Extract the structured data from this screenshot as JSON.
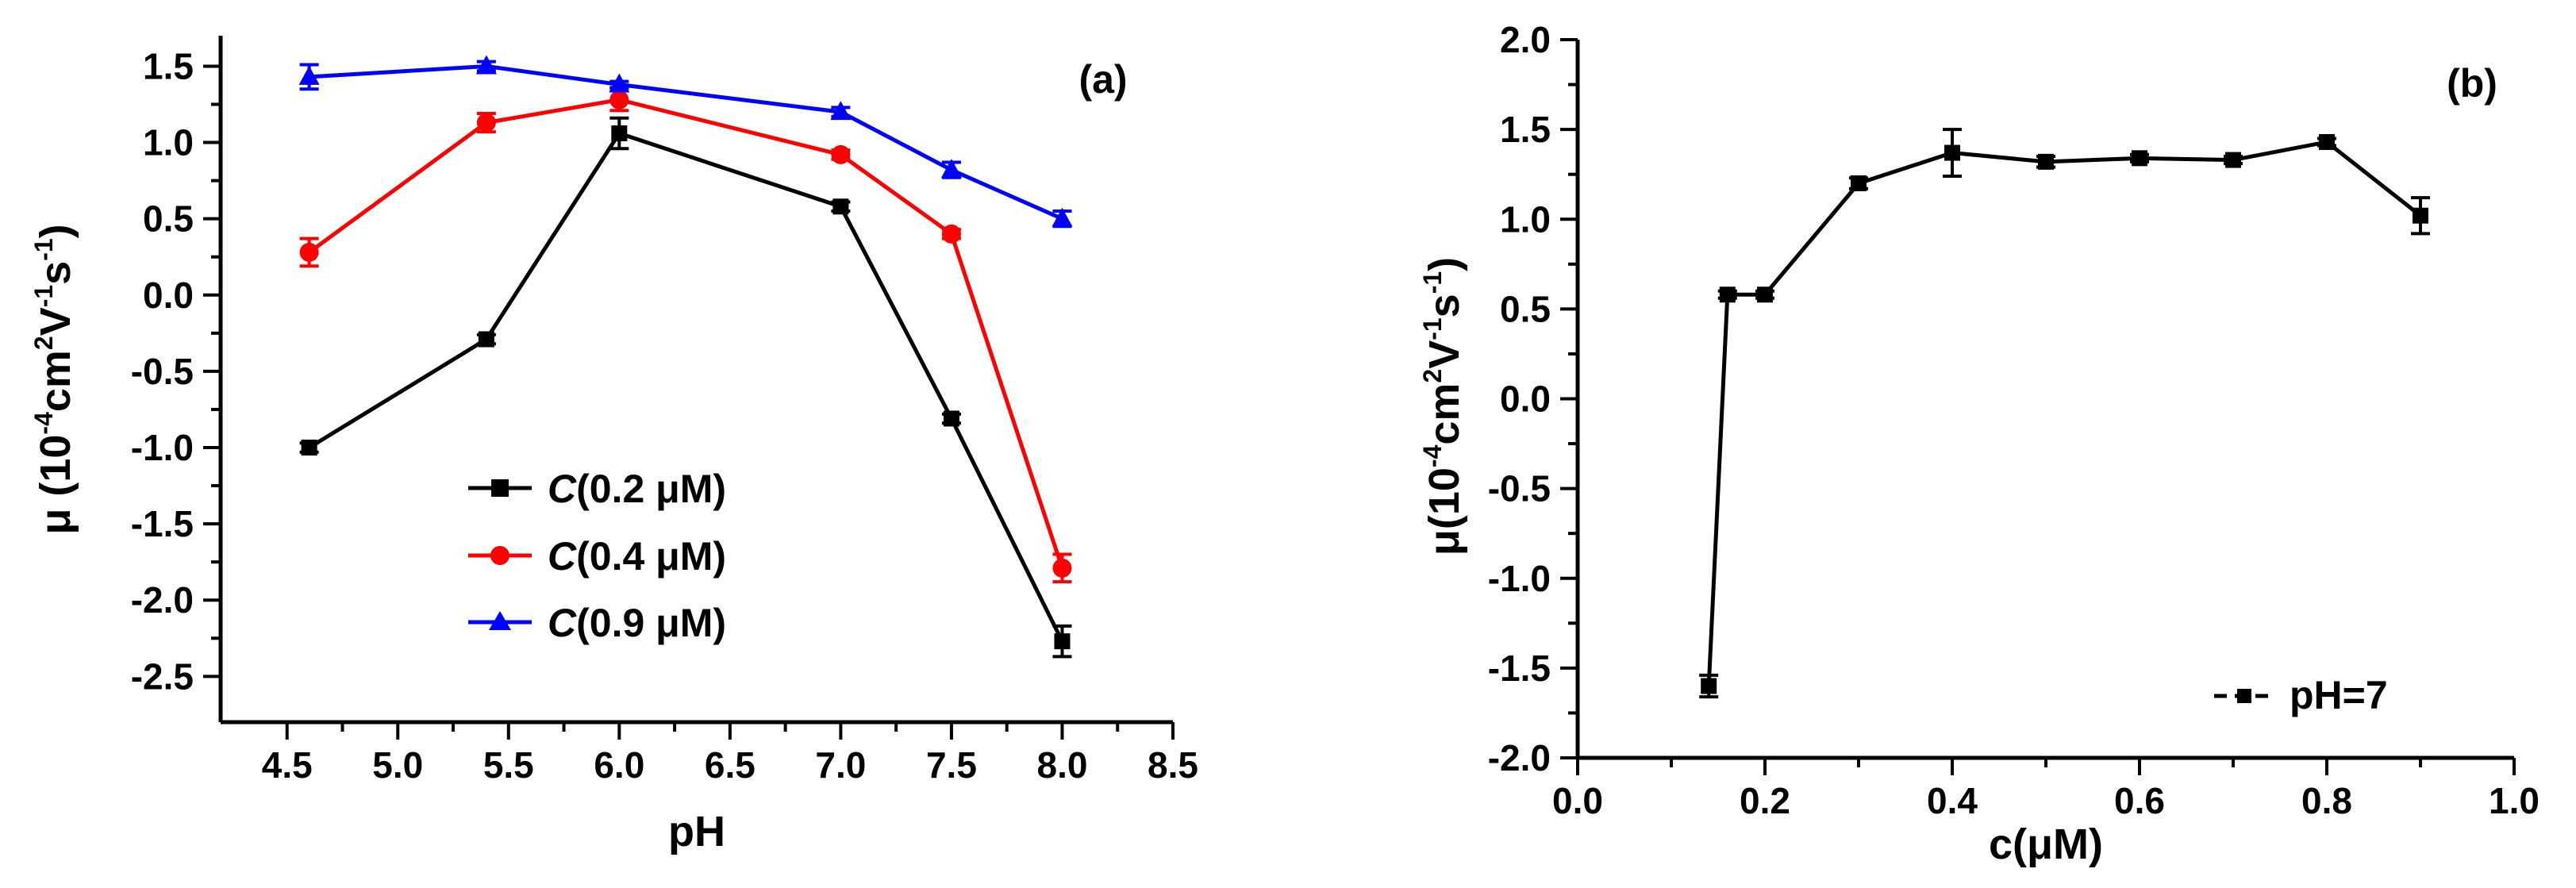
{
  "chart_data": [
    {
      "type": "line",
      "panel_label": "(a)",
      "xlabel": "pH",
      "ylabel": {
        "prefix": "μ (10",
        "exp1": "-4",
        "mid1": "cm",
        "exp2": "2",
        "mid2": "V",
        "exp3": "-1",
        "mid3": "s",
        "exp4": "-1",
        "suffix": ")"
      },
      "xlim": [
        4.2,
        8.5
      ],
      "ylim": [
        -2.8,
        1.7
      ],
      "xticks": [
        4.5,
        5.0,
        5.5,
        6.0,
        6.5,
        7.0,
        7.5,
        8.0,
        8.5
      ],
      "xtick_labels": [
        "4.5",
        "5.0",
        "5.5",
        "6.0",
        "6.5",
        "7.0",
        "7.5",
        "8.0",
        "8.5"
      ],
      "yticks": [
        1.5,
        1.0,
        0.5,
        0.0,
        -0.5,
        -1.0,
        -1.5,
        -2.0,
        -2.5
      ],
      "ytick_labels": [
        "1.5",
        "1.0",
        "0.5",
        "0.0",
        "-0.5",
        "-1.0",
        "-1.5",
        "-2.0",
        "-2.5"
      ],
      "series": [
        {
          "name": "C(0.2 μM)",
          "legend_italic": "C",
          "legend_rest": "(0.2 μM)",
          "color": "#000000",
          "marker": "square",
          "x": [
            4.6,
            5.4,
            6.0,
            7.0,
            7.5,
            8.0
          ],
          "values": [
            -1.0,
            -0.29,
            1.06,
            0.58,
            -0.81,
            -2.27
          ],
          "errors": [
            0.03,
            0.03,
            0.1,
            0.03,
            0.03,
            0.1
          ]
        },
        {
          "name": "C(0.4 μM)",
          "legend_italic": "C",
          "legend_rest": "(0.4 μM)",
          "color": "#ff0000",
          "marker": "circle",
          "x": [
            4.6,
            5.4,
            6.0,
            7.0,
            7.5,
            8.0
          ],
          "values": [
            0.28,
            1.13,
            1.28,
            0.92,
            0.4,
            -1.79
          ],
          "errors": [
            0.09,
            0.06,
            0.07,
            0.03,
            0.03,
            0.09
          ]
        },
        {
          "name": "C(0.9 μM)",
          "legend_italic": "C",
          "legend_rest": "(0.9 μM)",
          "color": "#0000ff",
          "marker": "triangle",
          "x": [
            4.6,
            5.4,
            6.0,
            7.0,
            7.5,
            8.0
          ],
          "values": [
            1.43,
            1.5,
            1.38,
            1.2,
            0.82,
            0.5
          ],
          "errors": [
            0.08,
            0.03,
            0.02,
            0.03,
            0.05,
            0.05
          ]
        }
      ]
    },
    {
      "type": "line",
      "panel_label": "(b)",
      "xlabel": "c(μM)",
      "ylabel": {
        "prefix": "μ(10",
        "exp1": "-4",
        "mid1": "cm",
        "exp2": "2",
        "mid2": "V",
        "exp3": "-1",
        "mid3": "s",
        "exp4": "-1",
        "suffix": ")"
      },
      "xlim": [
        0.0,
        1.0
      ],
      "ylim": [
        -2.0,
        2.0
      ],
      "xticks": [
        0.0,
        0.2,
        0.4,
        0.6,
        0.8,
        1.0
      ],
      "xtick_labels": [
        "0.0",
        "0.2",
        "0.4",
        "0.6",
        "0.8",
        "1.0"
      ],
      "yticks": [
        2.0,
        1.5,
        1.0,
        0.5,
        0.0,
        -0.5,
        -1.0,
        -1.5,
        -2.0
      ],
      "ytick_labels": [
        "2.0",
        "1.5",
        "1.0",
        "0.5",
        "0.0",
        "-0.5",
        "-1.0",
        "-1.5",
        "-2.0"
      ],
      "series": [
        {
          "name": "pH=7",
          "color": "#000000",
          "marker": "square",
          "x": [
            0.14,
            0.16,
            0.2,
            0.3,
            0.4,
            0.5,
            0.6,
            0.7,
            0.8,
            0.9
          ],
          "values": [
            -1.6,
            0.58,
            0.58,
            1.2,
            1.37,
            1.32,
            1.34,
            1.33,
            1.43,
            1.02
          ],
          "errors": [
            0.06,
            0.02,
            0.02,
            0.03,
            0.13,
            0.03,
            0.02,
            0.02,
            0.02,
            0.1
          ]
        }
      ]
    }
  ]
}
